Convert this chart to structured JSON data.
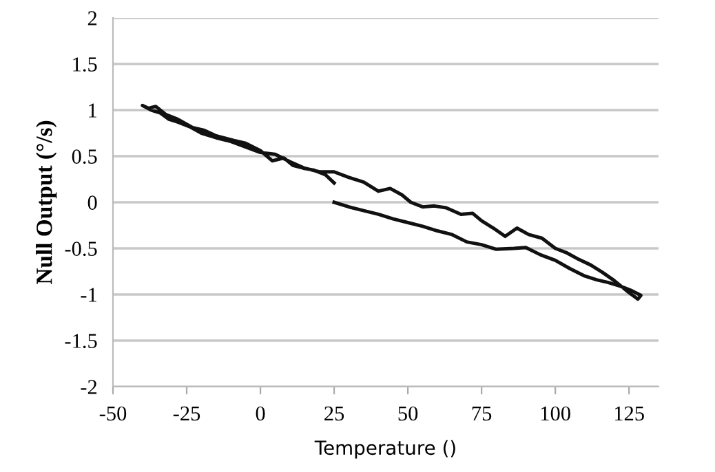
{
  "chart_data": {
    "type": "line",
    "xlabel": "Temperature ()",
    "ylabel": "Null Output (°/s)",
    "series": [
      {
        "color": "#111111",
        "x": [
          25,
          30,
          35,
          40,
          45,
          50,
          55,
          60,
          65,
          70,
          75,
          80,
          86,
          90,
          95,
          100,
          105,
          110,
          114,
          118,
          122,
          126,
          129,
          128,
          125,
          120,
          116,
          112,
          108,
          104,
          100,
          95.5,
          91,
          87,
          83,
          79,
          75,
          72,
          68,
          63,
          59,
          55,
          51,
          48,
          44,
          40,
          35,
          30,
          25,
          20,
          15,
          10,
          5,
          0,
          -5,
          -10,
          -15,
          -20,
          -24,
          -28,
          -31,
          -34,
          -37,
          -40,
          -38,
          -35.5,
          -32,
          -28,
          -23,
          -19,
          -15,
          -9,
          -5,
          0,
          4,
          8,
          11,
          14.6,
          18,
          22,
          25
        ],
        "values": [
          0,
          -0.05,
          -0.09,
          -0.13,
          -0.18,
          -0.22,
          -0.26,
          -0.31,
          -0.35,
          -0.43,
          -0.46,
          -0.51,
          -0.5,
          -0.49,
          -0.57,
          -0.63,
          -0.72,
          -0.8,
          -0.84,
          -0.87,
          -0.91,
          -0.96,
          -1.01,
          -1.05,
          -0.98,
          -0.85,
          -0.76,
          -0.68,
          -0.62,
          -0.55,
          -0.5,
          -0.39,
          -0.35,
          -0.28,
          -0.37,
          -0.28,
          -0.2,
          -0.12,
          -0.13,
          -0.06,
          -0.04,
          -0.05,
          0.0,
          0.08,
          0.15,
          0.12,
          0.22,
          0.27,
          0.33,
          0.33,
          0.37,
          0.44,
          0.52,
          0.54,
          0.6,
          0.66,
          0.7,
          0.75,
          0.82,
          0.87,
          0.9,
          0.97,
          1.0,
          1.05,
          1.02,
          1.04,
          0.95,
          0.9,
          0.81,
          0.78,
          0.72,
          0.67,
          0.64,
          0.56,
          0.45,
          0.48,
          0.4,
          0.37,
          0.35,
          0.3,
          0.21
        ]
      }
    ],
    "xlim": [
      -50,
      135
    ],
    "xticks": [
      -50,
      -25,
      0,
      25,
      50,
      75,
      100,
      125
    ],
    "ylim": [
      -2,
      2
    ],
    "yticks": [
      -2,
      -1.5,
      -1,
      -0.5,
      0,
      0.5,
      1,
      1.5,
      2
    ],
    "grid": "y",
    "legend": false,
    "marker": "none",
    "line_style": "solid"
  }
}
